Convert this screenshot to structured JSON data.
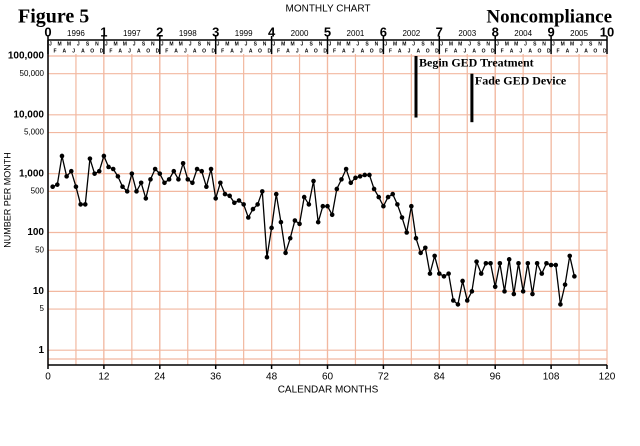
{
  "chart_data": {
    "type": "line",
    "figure_label": "Figure 5",
    "title": "MONTHLY CHART",
    "right_title": "Noncompliance",
    "xlabel": "CALENDAR MONTHS",
    "ylabel": "NUMBER PER MONTH",
    "log_y": true,
    "grid": true,
    "color": "#000000",
    "xlim": [
      0,
      120
    ],
    "xticks": [
      0,
      12,
      24,
      36,
      48,
      60,
      72,
      84,
      96,
      108,
      120
    ],
    "x2lim": [
      0,
      10
    ],
    "x2ticks": [
      0,
      1,
      2,
      3,
      4,
      5,
      6,
      7,
      8,
      9,
      10
    ],
    "years": [
      "1996",
      "1997",
      "1998",
      "1999",
      "2000",
      "2001",
      "2002",
      "2003",
      "2004",
      "2005"
    ],
    "month_letters": [
      "J",
      "F",
      "M",
      "A",
      "M",
      "J",
      "J",
      "A",
      "S",
      "O",
      "N",
      "D"
    ],
    "ylim": [
      0.56,
      187000
    ],
    "yticks": [
      1,
      5,
      10,
      50,
      100,
      500,
      {
        "value": 1000,
        "label": "1,000"
      },
      {
        "value": 5000,
        "label": "5,000"
      },
      {
        "value": 10000,
        "label": "10,000"
      },
      {
        "value": 50000,
        "label": "50,000"
      },
      {
        "value": 100000,
        "label": "100,000"
      }
    ],
    "x": [
      1,
      2,
      3,
      4,
      5,
      6,
      7,
      8,
      9,
      10,
      11,
      12,
      13,
      14,
      15,
      16,
      17,
      18,
      19,
      20,
      21,
      22,
      23,
      24,
      25,
      26,
      27,
      28,
      29,
      30,
      31,
      32,
      33,
      34,
      35,
      36,
      37,
      38,
      39,
      40,
      41,
      42,
      43,
      44,
      45,
      46,
      47,
      48,
      49,
      50,
      51,
      52,
      53,
      54,
      55,
      56,
      57,
      58,
      59,
      60,
      61,
      62,
      63,
      64,
      65,
      66,
      67,
      68,
      69,
      70,
      71,
      72,
      73,
      74,
      75,
      76,
      77,
      78,
      79,
      80,
      81,
      82,
      83,
      84,
      85,
      86,
      87,
      88,
      89,
      90,
      91,
      92,
      93,
      94,
      95,
      96,
      97,
      98,
      99,
      100,
      101,
      102,
      103,
      104,
      105,
      106,
      107,
      108,
      109,
      110,
      111,
      112,
      113
    ],
    "values": [
      600,
      650,
      2000,
      900,
      1100,
      600,
      300,
      300,
      1800,
      1000,
      1100,
      2000,
      1300,
      1200,
      900,
      600,
      500,
      1000,
      500,
      700,
      380,
      800,
      1200,
      1000,
      700,
      800,
      1100,
      800,
      1500,
      800,
      700,
      1200,
      1100,
      600,
      1200,
      380,
      700,
      450,
      420,
      320,
      350,
      300,
      180,
      250,
      300,
      500,
      38,
      120,
      450,
      150,
      45,
      80,
      160,
      140,
      400,
      300,
      750,
      150,
      280,
      280,
      200,
      550,
      800,
      1200,
      700,
      850,
      900,
      950,
      950,
      550,
      400,
      280,
      400,
      450,
      300,
      180,
      100,
      280,
      80,
      45,
      55,
      20,
      40,
      20,
      18,
      20,
      7,
      6,
      15,
      7,
      10,
      32,
      20,
      30,
      30,
      12,
      30,
      10,
      35,
      9,
      30,
      10,
      30,
      9,
      30,
      20,
      30,
      28,
      28,
      6,
      13,
      40,
      18
    ],
    "annotations": [
      {
        "text": "Begin GED Treatment",
        "x": 79,
        "y_from": 9000,
        "y_to": 100000
      },
      {
        "text": "Fade GED Device",
        "x": 91,
        "y_from": 7500,
        "y_to": 50000
      }
    ]
  }
}
